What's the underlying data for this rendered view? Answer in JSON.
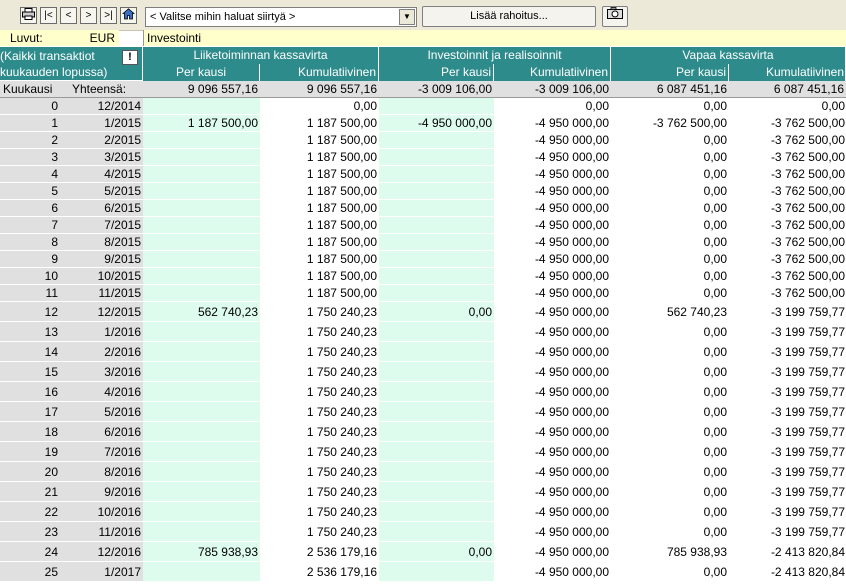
{
  "toolbar": {
    "print_icon": "printer-icon",
    "first_label": "|<",
    "prev_label": "<",
    "next_label": ">",
    "last_label": ">|",
    "home_icon": "home-icon",
    "navigate_select_value": "< Valitse mihin haluat siirtyä >",
    "add_funding_label": "Lisää rahoitus...",
    "camera_icon": "camera-icon"
  },
  "info": {
    "units_label": "Luvut:",
    "currency": "EUR",
    "sheet_title": "Investointi"
  },
  "headers": {
    "note": "(Kaikki transaktiot kuukauden lopussa)",
    "note_line1": "(Kaikki transaktiot",
    "note_line2": "kuukauden lopussa)",
    "exclamation": "!",
    "group1": "Liiketoiminnan kassavirta",
    "group2": "Investoinnit ja realisoinnit",
    "group3": "Vapaa kassavirta",
    "per_period": "Per kausi",
    "cumulative": "Kumulatiivinen",
    "month_col": "Kuukausi",
    "total_label": "Yhteensä:"
  },
  "totals": {
    "op_period": "9 096 557,16",
    "op_cum": "9 096 557,16",
    "inv_period": "-3 009 106,00",
    "inv_cum": "-3 009 106,00",
    "free_period": "6 087 451,16",
    "free_cum": "6 087 451,16"
  },
  "rows": [
    {
      "n": "0",
      "d": "12/2014",
      "a": "",
      "b": "0,00",
      "c": "",
      "e": "0,00",
      "f": "0,00",
      "g": "0,00"
    },
    {
      "n": "1",
      "d": "1/2015",
      "a": "1 187 500,00",
      "b": "1 187 500,00",
      "c": "-4 950 000,00",
      "e": "-4 950 000,00",
      "f": "-3 762 500,00",
      "g": "-3 762 500,00"
    },
    {
      "n": "2",
      "d": "2/2015",
      "a": "",
      "b": "1 187 500,00",
      "c": "",
      "e": "-4 950 000,00",
      "f": "0,00",
      "g": "-3 762 500,00"
    },
    {
      "n": "3",
      "d": "3/2015",
      "a": "",
      "b": "1 187 500,00",
      "c": "",
      "e": "-4 950 000,00",
      "f": "0,00",
      "g": "-3 762 500,00"
    },
    {
      "n": "4",
      "d": "4/2015",
      "a": "",
      "b": "1 187 500,00",
      "c": "",
      "e": "-4 950 000,00",
      "f": "0,00",
      "g": "-3 762 500,00"
    },
    {
      "n": "5",
      "d": "5/2015",
      "a": "",
      "b": "1 187 500,00",
      "c": "",
      "e": "-4 950 000,00",
      "f": "0,00",
      "g": "-3 762 500,00"
    },
    {
      "n": "6",
      "d": "6/2015",
      "a": "",
      "b": "1 187 500,00",
      "c": "",
      "e": "-4 950 000,00",
      "f": "0,00",
      "g": "-3 762 500,00"
    },
    {
      "n": "7",
      "d": "7/2015",
      "a": "",
      "b": "1 187 500,00",
      "c": "",
      "e": "-4 950 000,00",
      "f": "0,00",
      "g": "-3 762 500,00"
    },
    {
      "n": "8",
      "d": "8/2015",
      "a": "",
      "b": "1 187 500,00",
      "c": "",
      "e": "-4 950 000,00",
      "f": "0,00",
      "g": "-3 762 500,00"
    },
    {
      "n": "9",
      "d": "9/2015",
      "a": "",
      "b": "1 187 500,00",
      "c": "",
      "e": "-4 950 000,00",
      "f": "0,00",
      "g": "-3 762 500,00"
    },
    {
      "n": "10",
      "d": "10/2015",
      "a": "",
      "b": "1 187 500,00",
      "c": "",
      "e": "-4 950 000,00",
      "f": "0,00",
      "g": "-3 762 500,00"
    },
    {
      "n": "11",
      "d": "11/2015",
      "a": "",
      "b": "1 187 500,00",
      "c": "",
      "e": "-4 950 000,00",
      "f": "0,00",
      "g": "-3 762 500,00"
    },
    {
      "n": "12",
      "d": "12/2015",
      "a": "562 740,23",
      "b": "1 750 240,23",
      "c": "0,00",
      "e": "-4 950 000,00",
      "f": "562 740,23",
      "g": "-3 199 759,77"
    },
    {
      "n": "13",
      "d": "1/2016",
      "a": "",
      "b": "1 750 240,23",
      "c": "",
      "e": "-4 950 000,00",
      "f": "0,00",
      "g": "-3 199 759,77"
    },
    {
      "n": "14",
      "d": "2/2016",
      "a": "",
      "b": "1 750 240,23",
      "c": "",
      "e": "-4 950 000,00",
      "f": "0,00",
      "g": "-3 199 759,77"
    },
    {
      "n": "15",
      "d": "3/2016",
      "a": "",
      "b": "1 750 240,23",
      "c": "",
      "e": "-4 950 000,00",
      "f": "0,00",
      "g": "-3 199 759,77"
    },
    {
      "n": "16",
      "d": "4/2016",
      "a": "",
      "b": "1 750 240,23",
      "c": "",
      "e": "-4 950 000,00",
      "f": "0,00",
      "g": "-3 199 759,77"
    },
    {
      "n": "17",
      "d": "5/2016",
      "a": "",
      "b": "1 750 240,23",
      "c": "",
      "e": "-4 950 000,00",
      "f": "0,00",
      "g": "-3 199 759,77"
    },
    {
      "n": "18",
      "d": "6/2016",
      "a": "",
      "b": "1 750 240,23",
      "c": "",
      "e": "-4 950 000,00",
      "f": "0,00",
      "g": "-3 199 759,77"
    },
    {
      "n": "19",
      "d": "7/2016",
      "a": "",
      "b": "1 750 240,23",
      "c": "",
      "e": "-4 950 000,00",
      "f": "0,00",
      "g": "-3 199 759,77"
    },
    {
      "n": "20",
      "d": "8/2016",
      "a": "",
      "b": "1 750 240,23",
      "c": "",
      "e": "-4 950 000,00",
      "f": "0,00",
      "g": "-3 199 759,77"
    },
    {
      "n": "21",
      "d": "9/2016",
      "a": "",
      "b": "1 750 240,23",
      "c": "",
      "e": "-4 950 000,00",
      "f": "0,00",
      "g": "-3 199 759,77"
    },
    {
      "n": "22",
      "d": "10/2016",
      "a": "",
      "b": "1 750 240,23",
      "c": "",
      "e": "-4 950 000,00",
      "f": "0,00",
      "g": "-3 199 759,77"
    },
    {
      "n": "23",
      "d": "11/2016",
      "a": "",
      "b": "1 750 240,23",
      "c": "",
      "e": "-4 950 000,00",
      "f": "0,00",
      "g": "-3 199 759,77"
    },
    {
      "n": "24",
      "d": "12/2016",
      "a": "785 938,93",
      "b": "2 536 179,16",
      "c": "0,00",
      "e": "-4 950 000,00",
      "f": "785 938,93",
      "g": "-2 413 820,84"
    },
    {
      "n": "25",
      "d": "1/2017",
      "a": "",
      "b": "2 536 179,16",
      "c": "",
      "e": "-4 950 000,00",
      "f": "0,00",
      "g": "-2 413 820,84"
    }
  ]
}
